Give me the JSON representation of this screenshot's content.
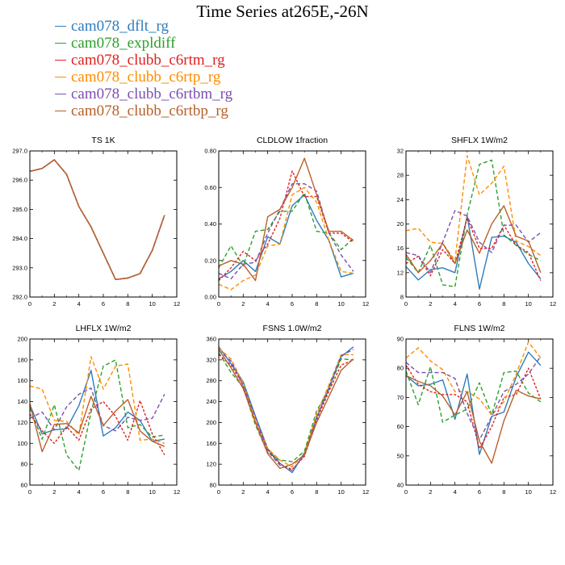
{
  "title": "Time Series at265E,-26N",
  "series": [
    {
      "name": "cam078_dflt_rg",
      "color": "#2e7dbd",
      "dash": ""
    },
    {
      "name": "cam078_expldiff",
      "color": "#2ca02c",
      "dash": "5,3"
    },
    {
      "name": "cam078_clubb_c6rtm_rg",
      "color": "#e02020",
      "dash": "3,2"
    },
    {
      "name": "cam078_clubb_c6rtp_rg",
      "color": "#ff8c00",
      "dash": "5,3"
    },
    {
      "name": "cam078_clubb_c6rtbm_rg",
      "color": "#7b4fb0",
      "dash": "5,3"
    },
    {
      "name": "cam078_clubb_c6rtbp_rg",
      "color": "#b8602a",
      "dash": ""
    }
  ],
  "chart_data": [
    {
      "type": "line",
      "title": "TS   1K",
      "xlim": [
        0,
        12
      ],
      "xticks": [
        0,
        2,
        4,
        6,
        8,
        10,
        12
      ],
      "ylim": [
        292,
        297
      ],
      "yticks": [
        "292.0",
        "293.0",
        "294.0",
        "295.0",
        "296.0",
        "297.0"
      ],
      "x": [
        0,
        1,
        2,
        3,
        4,
        5,
        6,
        7,
        8,
        9,
        10,
        11
      ],
      "series": [
        {
          "values": [
            296.3,
            296.4,
            296.7,
            296.2,
            295.1,
            294.4,
            293.5,
            292.6,
            292.65,
            292.8,
            293.6,
            294.8
          ]
        },
        {
          "values": [
            296.3,
            296.4,
            296.7,
            296.2,
            295.1,
            294.4,
            293.5,
            292.6,
            292.65,
            292.8,
            293.6,
            294.8
          ]
        },
        {
          "values": [
            296.3,
            296.4,
            296.7,
            296.2,
            295.1,
            294.4,
            293.5,
            292.6,
            292.65,
            292.8,
            293.6,
            294.8
          ]
        },
        {
          "values": [
            296.3,
            296.4,
            296.7,
            296.2,
            295.1,
            294.4,
            293.5,
            292.6,
            292.65,
            292.8,
            293.6,
            294.8
          ]
        },
        {
          "values": [
            296.3,
            296.4,
            296.7,
            296.2,
            295.1,
            294.4,
            293.5,
            292.6,
            292.65,
            292.8,
            293.6,
            294.8
          ]
        },
        {
          "values": [
            296.3,
            296.4,
            296.7,
            296.2,
            295.1,
            294.4,
            293.5,
            292.6,
            292.65,
            292.8,
            293.6,
            294.8
          ]
        }
      ]
    },
    {
      "type": "line",
      "title": "CLDLOW   1fraction",
      "xlim": [
        0,
        12
      ],
      "xticks": [
        0,
        2,
        4,
        6,
        8,
        10,
        12
      ],
      "ylim": [
        0,
        0.8
      ],
      "yticks": [
        "0.00",
        "0.20",
        "0.40",
        "0.60",
        "0.80"
      ],
      "x": [
        0,
        1,
        2,
        3,
        4,
        5,
        6,
        7,
        8,
        9,
        10,
        11
      ],
      "series": [
        {
          "values": [
            0.1,
            0.14,
            0.2,
            0.14,
            0.33,
            0.29,
            0.5,
            0.56,
            0.42,
            0.31,
            0.11,
            0.13
          ]
        },
        {
          "values": [
            0.16,
            0.28,
            0.17,
            0.36,
            0.37,
            0.47,
            0.47,
            0.57,
            0.36,
            0.35,
            0.26,
            0.32
          ]
        },
        {
          "values": [
            0.09,
            0.16,
            0.25,
            0.2,
            0.29,
            0.43,
            0.69,
            0.55,
            0.55,
            0.35,
            0.35,
            0.3
          ]
        },
        {
          "values": [
            0.07,
            0.04,
            0.09,
            0.12,
            0.28,
            0.29,
            0.56,
            0.6,
            0.52,
            0.31,
            0.14,
            0.13
          ]
        },
        {
          "values": [
            0.13,
            0.1,
            0.18,
            0.19,
            0.35,
            0.48,
            0.62,
            0.62,
            0.58,
            0.35,
            0.23,
            0.14
          ]
        },
        {
          "values": [
            0.17,
            0.2,
            0.18,
            0.09,
            0.44,
            0.48,
            0.6,
            0.76,
            0.56,
            0.36,
            0.36,
            0.31
          ]
        }
      ]
    },
    {
      "type": "line",
      "title": "SHFLX   1W/m2",
      "xlim": [
        0,
        12
      ],
      "xticks": [
        0,
        2,
        4,
        6,
        8,
        10,
        12
      ],
      "ylim": [
        8,
        32
      ],
      "yticks": [
        "8",
        "12",
        "16",
        "20",
        "24",
        "28",
        "32"
      ],
      "x": [
        0,
        1,
        2,
        3,
        4,
        5,
        6,
        7,
        8,
        9,
        10,
        11
      ],
      "series": [
        {
          "values": [
            13.0,
            10.8,
            12.5,
            12.8,
            12.0,
            21.3,
            9.3,
            17.8,
            18.0,
            17.0,
            13.5,
            11.0
          ]
        },
        {
          "values": [
            14.5,
            12.0,
            16.5,
            10.0,
            9.7,
            21.5,
            29.8,
            30.5,
            18.2,
            16.5,
            15.0,
            14.0
          ]
        },
        {
          "values": [
            13.5,
            14.7,
            11.5,
            15.8,
            13.5,
            21.0,
            16.0,
            16.0,
            19.8,
            16.5,
            15.3,
            10.7
          ]
        },
        {
          "values": [
            18.9,
            19.3,
            17.0,
            16.8,
            14.0,
            31.2,
            24.8,
            26.7,
            29.5,
            17.2,
            16.3,
            14.8
          ]
        },
        {
          "values": [
            15.3,
            14.8,
            12.0,
            17.0,
            22.2,
            21.3,
            17.0,
            15.3,
            19.8,
            19.8,
            17.0,
            18.6
          ]
        },
        {
          "values": [
            15.0,
            12.0,
            14.0,
            16.8,
            13.5,
            19.0,
            15.2,
            20.0,
            23.0,
            18.0,
            17.2,
            12.0
          ]
        }
      ]
    },
    {
      "type": "line",
      "title": "LHFLX   1W/m2",
      "xlim": [
        0,
        12
      ],
      "xticks": [
        0,
        2,
        4,
        6,
        8,
        10,
        12
      ],
      "ylim": [
        60,
        200
      ],
      "yticks": [
        "60",
        "80",
        "100",
        "120",
        "140",
        "160",
        "180",
        "200"
      ],
      "x": [
        0,
        1,
        2,
        3,
        4,
        5,
        6,
        7,
        8,
        9,
        10,
        11
      ],
      "series": [
        {
          "values": [
            137,
            109,
            113,
            114,
            136,
            170,
            107,
            115,
            130,
            122,
            102,
            104
          ]
        },
        {
          "values": [
            134,
            104,
            137,
            89,
            74,
            130,
            174,
            180,
            115,
            118,
            106,
            108
          ]
        },
        {
          "values": [
            128,
            112,
            100,
            116,
            103,
            133,
            140,
            126,
            103,
            141,
            109,
            89
          ]
        },
        {
          "values": [
            155,
            152,
            122,
            121,
            108,
            183,
            152,
            174,
            176,
            103,
            104,
            100
          ]
        },
        {
          "values": [
            124,
            130,
            113,
            135,
            147,
            153,
            117,
            112,
            125,
            122,
            124,
            147
          ]
        },
        {
          "values": [
            138,
            92,
            118,
            119,
            110,
            145,
            117,
            131,
            142,
            112,
            102,
            97
          ]
        }
      ]
    },
    {
      "type": "line",
      "title": "FSNS   1.0W/m2",
      "xlim": [
        0,
        12
      ],
      "xticks": [
        0,
        2,
        4,
        6,
        8,
        10,
        12
      ],
      "ylim": [
        80,
        360
      ],
      "yticks": [
        "80",
        "120",
        "160",
        "200",
        "240",
        "280",
        "320",
        "360"
      ],
      "x": [
        0,
        1,
        2,
        3,
        4,
        5,
        6,
        7,
        8,
        9,
        10,
        11
      ],
      "series": [
        {
          "values": [
            345,
            313,
            278,
            212,
            150,
            122,
            104,
            142,
            210,
            265,
            326,
            345
          ]
        },
        {
          "values": [
            334,
            296,
            268,
            195,
            142,
            128,
            125,
            145,
            222,
            264,
            322,
            320
          ]
        },
        {
          "values": [
            330,
            310,
            272,
            200,
            148,
            120,
            110,
            135,
            205,
            260,
            310,
            320
          ]
        },
        {
          "values": [
            342,
            322,
            275,
            205,
            150,
            128,
            115,
            140,
            215,
            272,
            330,
            330
          ]
        },
        {
          "values": [
            338,
            318,
            270,
            210,
            145,
            118,
            108,
            138,
            208,
            268,
            328,
            340
          ]
        },
        {
          "values": [
            340,
            305,
            265,
            200,
            140,
            112,
            120,
            138,
            200,
            250,
            300,
            322
          ]
        }
      ]
    },
    {
      "type": "line",
      "title": "FLNS   1W/m2",
      "xlim": [
        0,
        12
      ],
      "xticks": [
        0,
        2,
        4,
        6,
        8,
        10,
        12
      ],
      "ylim": [
        40,
        90
      ],
      "yticks": [
        "40",
        "50",
        "60",
        "70",
        "80",
        "90"
      ],
      "x": [
        0,
        1,
        2,
        3,
        4,
        5,
        6,
        7,
        8,
        9,
        10,
        11
      ],
      "series": [
        {
          "values": [
            77.5,
            74,
            74.5,
            76,
            62.5,
            78,
            50.5,
            63.5,
            65,
            77,
            85.5,
            81
          ]
        },
        {
          "values": [
            79,
            67.5,
            80.5,
            61.5,
            64,
            66,
            75,
            64,
            78.5,
            79,
            71.5,
            68.5
          ]
        },
        {
          "values": [
            81,
            74.5,
            72,
            71,
            71,
            68.5,
            52.5,
            60,
            70,
            71,
            80,
            69.5
          ]
        },
        {
          "values": [
            83.5,
            87,
            82.5,
            79.5,
            72,
            72,
            69.5,
            64,
            68.5,
            78,
            89,
            83.5
          ]
        },
        {
          "values": [
            82,
            78.5,
            78.5,
            78.5,
            76.5,
            64.5,
            55.5,
            63.5,
            72,
            74.5,
            78,
            84
          ]
        },
        {
          "values": [
            77.5,
            75.5,
            74,
            70.5,
            64,
            72,
            55,
            47.5,
            62,
            72.5,
            70.5,
            69.5
          ]
        }
      ]
    }
  ]
}
